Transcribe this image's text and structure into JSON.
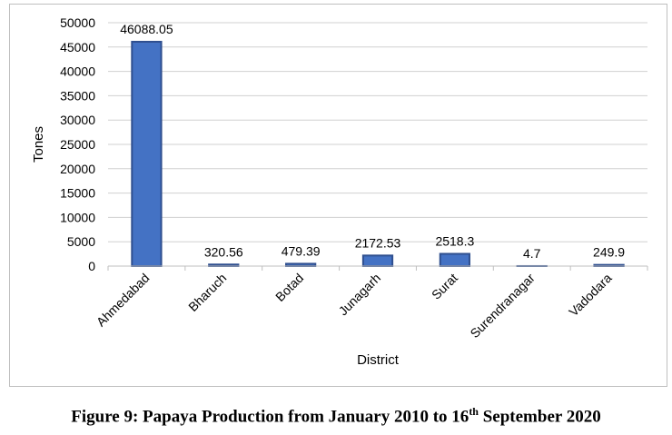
{
  "chart_data": {
    "type": "bar",
    "categories": [
      "Ahmedabad",
      "Bharuch",
      "Botad",
      "Junagarh",
      "Surat",
      "Surendranagar",
      "Vadodara"
    ],
    "values": [
      46088.05,
      320.56,
      479.39,
      2172.53,
      2518.3,
      4.7,
      249.9
    ],
    "data_labels": [
      "46088.05",
      "320.56",
      "479.39",
      "2172.53",
      "2518.3",
      "4.7",
      "249.9"
    ],
    "xlabel": "District",
    "ylabel": "Tones",
    "ylim": [
      0,
      50000
    ],
    "yticks": [
      0,
      5000,
      10000,
      15000,
      20000,
      25000,
      30000,
      35000,
      40000,
      45000,
      50000
    ],
    "grid": true,
    "bar_color": "#4472c4",
    "bar_edge_color": "#2f4f8f"
  },
  "caption": {
    "prefix": "Figure 9: Papaya Production from January 2010 to 16",
    "superscript": "th",
    "suffix": " September 2020"
  }
}
